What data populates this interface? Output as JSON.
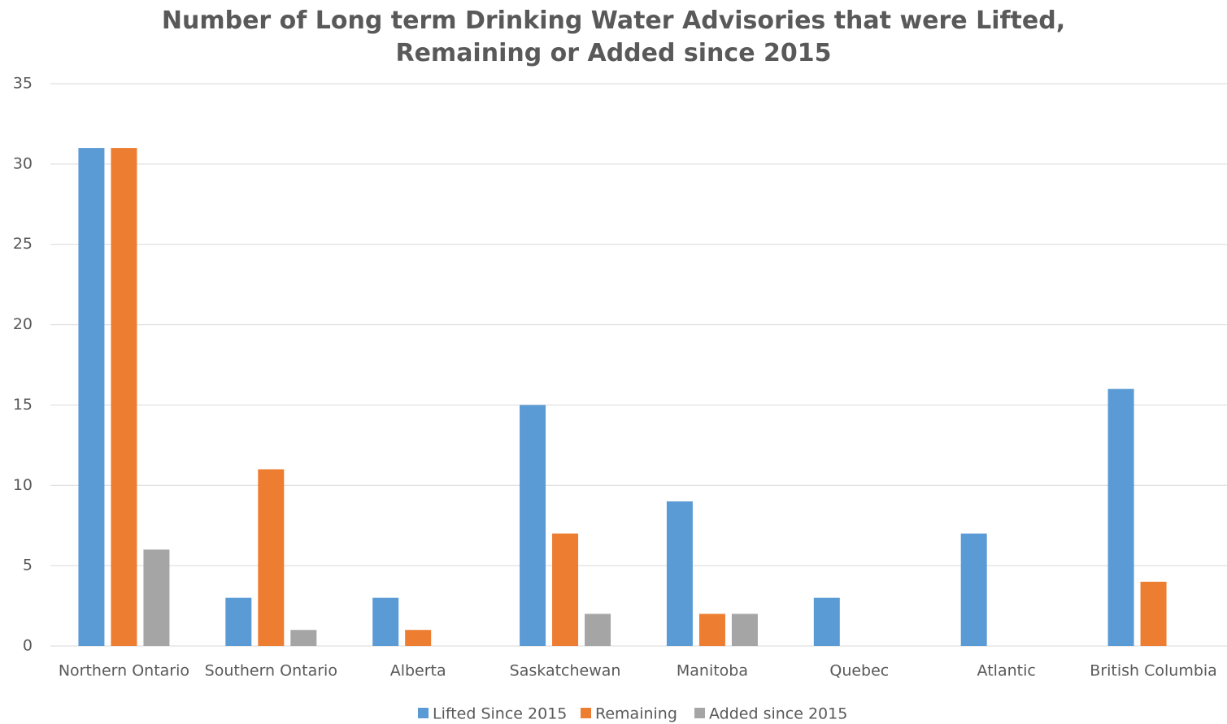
{
  "chart_data": {
    "type": "bar",
    "title": "Number of Long term Drinking Water Advisories that were Lifted, Remaining or Added since 2015",
    "categories": [
      "Northern Ontario",
      "Southern Ontario",
      "Alberta",
      "Saskatchewan",
      "Manitoba",
      "Quebec",
      "Atlantic",
      "British Columbia"
    ],
    "series": [
      {
        "name": "Lifted Since 2015",
        "color": "#5b9bd5",
        "values": [
          31,
          3,
          3,
          15,
          9,
          3,
          7,
          16
        ]
      },
      {
        "name": "Remaining",
        "color": "#ed7d31",
        "values": [
          31,
          11,
          1,
          7,
          2,
          0,
          0,
          4
        ]
      },
      {
        "name": "Added since 2015",
        "color": "#a5a5a5",
        "values": [
          6,
          1,
          0,
          2,
          2,
          0,
          0,
          0
        ]
      }
    ],
    "ylim": [
      0,
      35
    ],
    "yticks": [
      0,
      5,
      10,
      15,
      20,
      25,
      30,
      35
    ],
    "grid": true,
    "legend": "bottom"
  }
}
